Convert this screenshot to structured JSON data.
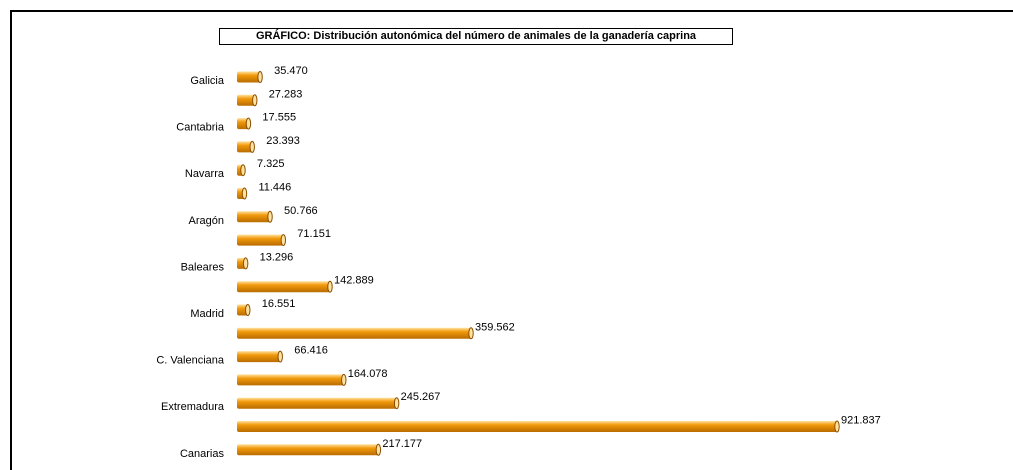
{
  "chart_data": {
    "type": "bar",
    "orientation": "horizontal",
    "title": "GRÁFICO: Distribución autonómica del número de animales de la ganadería caprina",
    "category_labels": [
      "Galicia",
      "Cantabria",
      "Navarra",
      "Aragón",
      "Baleares",
      "Madrid",
      "C. Valenciana",
      "Extremadura",
      "Canarias"
    ],
    "values": [
      35470,
      27283,
      17555,
      23393,
      7325,
      11446,
      50766,
      71151,
      13296,
      142889,
      16551,
      359562,
      66416,
      164078,
      245267,
      921837,
      217177
    ],
    "data_labels": [
      "35.470",
      "27.283",
      "17.555",
      "23.393",
      "7.325",
      "11.446",
      "50.766",
      "71.151",
      "13.296",
      "142.889",
      "16.551",
      "359.562",
      "66.416",
      "164.078",
      "245.267",
      "921.837",
      "217.177"
    ],
    "label_rows": [
      0,
      2,
      4,
      6,
      8,
      10,
      12,
      14,
      16
    ],
    "xlim": [
      0,
      1000000
    ],
    "grid": false,
    "legend": "none",
    "colors": {
      "bar": "#F29A0C",
      "bar_light": "#FFE2A0",
      "bar_dark": "#B86B00",
      "cap": "#8A4E00"
    }
  }
}
